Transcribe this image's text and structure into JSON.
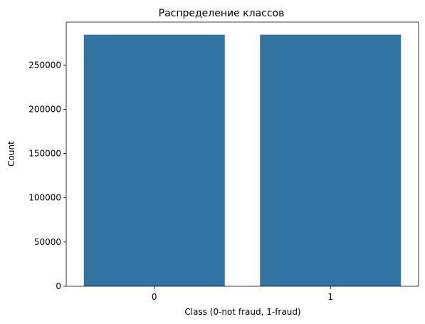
{
  "chart_data": {
    "type": "bar",
    "title": "Распределение классов",
    "xlabel": "Class (0-not fraud, 1-fraud)",
    "ylabel": "Count",
    "categories": [
      "0",
      "1"
    ],
    "values": [
      284315,
      284315
    ],
    "ylim": [
      0,
      298531
    ],
    "yticks": [
      0,
      50000,
      100000,
      150000,
      200000,
      250000
    ],
    "ytick_labels": [
      "0",
      "50000",
      "100000",
      "150000",
      "200000",
      "250000"
    ],
    "grid": false,
    "legend": "none",
    "colors": {
      "bar": "#3274a1",
      "axis": "#000000",
      "background": "#ffffff"
    }
  }
}
